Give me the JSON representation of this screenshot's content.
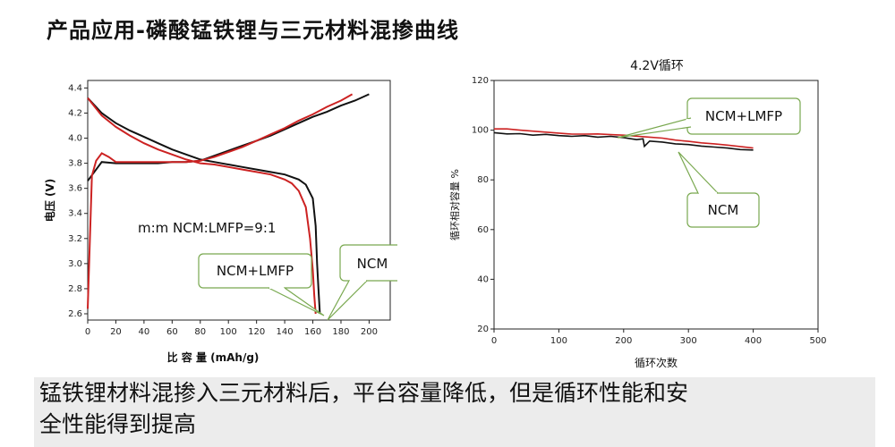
{
  "title": "产品应用-磷酸锰铁锂与三元材料混掺曲线",
  "caption": {
    "line1": "锰铁锂材料混掺入三元材料后，平台容量降低，但是循环性能和安",
    "line2": "全性能得到提高"
  },
  "chart_data": [
    {
      "type": "line",
      "title": "",
      "xlabel": "比 容 量 (mAh/g)",
      "ylabel": "电压 (V)",
      "xlim": [
        0,
        215
      ],
      "ylim": [
        2.55,
        4.46
      ],
      "xticks": [
        0,
        20,
        40,
        60,
        80,
        100,
        120,
        140,
        160,
        180,
        200
      ],
      "yticks": [
        2.6,
        2.8,
        3.0,
        3.2,
        3.4,
        3.6,
        3.8,
        4.0,
        4.2,
        4.4
      ],
      "grid": false,
      "annotation": "m:m NCM:LMFP=9:1",
      "colors": {
        "ncm": "#111111",
        "blend": "#cc2222"
      },
      "callouts": [
        "NCM+LMFP",
        "NCM"
      ],
      "series": [
        {
          "name": "NCM",
          "curve": "charge",
          "x": [
            0,
            10,
            20,
            30,
            40,
            50,
            60,
            70,
            80,
            90,
            100,
            110,
            120,
            130,
            140,
            150,
            160,
            170,
            180,
            190,
            200
          ],
          "y": [
            3.66,
            3.81,
            3.8,
            3.8,
            3.8,
            3.8,
            3.81,
            3.81,
            3.82,
            3.86,
            3.9,
            3.94,
            3.98,
            4.02,
            4.07,
            4.12,
            4.17,
            4.21,
            4.26,
            4.3,
            4.35
          ]
        },
        {
          "name": "NCM",
          "curve": "discharge",
          "x": [
            0,
            10,
            20,
            30,
            40,
            50,
            60,
            70,
            80,
            90,
            100,
            110,
            120,
            130,
            140,
            150,
            155,
            160,
            162,
            163,
            164,
            165
          ],
          "y": [
            4.32,
            4.2,
            4.12,
            4.06,
            4.01,
            3.96,
            3.91,
            3.87,
            3.83,
            3.81,
            3.79,
            3.77,
            3.75,
            3.73,
            3.71,
            3.67,
            3.63,
            3.52,
            3.3,
            3.0,
            2.8,
            2.6
          ]
        },
        {
          "name": "NCM+LMFP",
          "curve": "charge",
          "x": [
            0,
            3,
            6,
            10,
            15,
            20,
            30,
            40,
            50,
            60,
            70,
            80,
            90,
            100,
            110,
            120,
            130,
            140,
            150,
            160,
            170,
            180,
            188
          ],
          "y": [
            2.64,
            3.7,
            3.82,
            3.88,
            3.85,
            3.81,
            3.81,
            3.81,
            3.81,
            3.81,
            3.81,
            3.82,
            3.85,
            3.89,
            3.93,
            3.98,
            4.03,
            4.08,
            4.14,
            4.19,
            4.25,
            4.3,
            4.35
          ]
        },
        {
          "name": "NCM+LMFP",
          "curve": "discharge",
          "x": [
            0,
            10,
            20,
            30,
            40,
            50,
            60,
            70,
            80,
            90,
            100,
            110,
            120,
            130,
            140,
            145,
            150,
            155,
            158,
            160,
            161,
            162
          ],
          "y": [
            4.32,
            4.18,
            4.09,
            4.02,
            3.96,
            3.91,
            3.87,
            3.83,
            3.8,
            3.79,
            3.77,
            3.75,
            3.73,
            3.71,
            3.67,
            3.64,
            3.58,
            3.45,
            3.2,
            2.95,
            2.75,
            2.6
          ]
        }
      ]
    },
    {
      "type": "line",
      "title": "4.2V循环",
      "xlabel": "循环次数",
      "ylabel": "循环相对容量 %",
      "xlim": [
        0,
        500
      ],
      "ylim": [
        20,
        120
      ],
      "xticks": [
        0,
        100,
        200,
        300,
        400,
        500
      ],
      "yticks": [
        20,
        40,
        60,
        80,
        100,
        120
      ],
      "grid": false,
      "colors": {
        "ncm": "#111111",
        "blend": "#cc2222"
      },
      "callouts": [
        "NCM+LMFP",
        "NCM"
      ],
      "series": [
        {
          "name": "NCM",
          "x": [
            0,
            20,
            40,
            60,
            80,
            100,
            120,
            140,
            160,
            180,
            200,
            220,
            230,
            232,
            240,
            260,
            280,
            300,
            320,
            340,
            360,
            380,
            400
          ],
          "y": [
            99,
            98.5,
            98.6,
            98,
            98.3,
            97.8,
            97.5,
            97.8,
            97.2,
            97.5,
            97,
            96.2,
            96.5,
            93.5,
            95.6,
            95.2,
            94.5,
            94.2,
            93.6,
            93.2,
            92.8,
            92.2,
            92
          ]
        },
        {
          "name": "NCM+LMFP",
          "x": [
            0,
            20,
            40,
            60,
            80,
            100,
            120,
            140,
            160,
            180,
            200,
            220,
            240,
            260,
            280,
            300,
            320,
            340,
            360,
            380,
            400
          ],
          "y": [
            100.5,
            100.5,
            100,
            99.6,
            99.2,
            98.8,
            98.4,
            98.4,
            98.5,
            98.2,
            98,
            97.6,
            97.2,
            96.8,
            96,
            95.5,
            94.9,
            94.5,
            94,
            93.4,
            92.8
          ]
        }
      ]
    }
  ]
}
